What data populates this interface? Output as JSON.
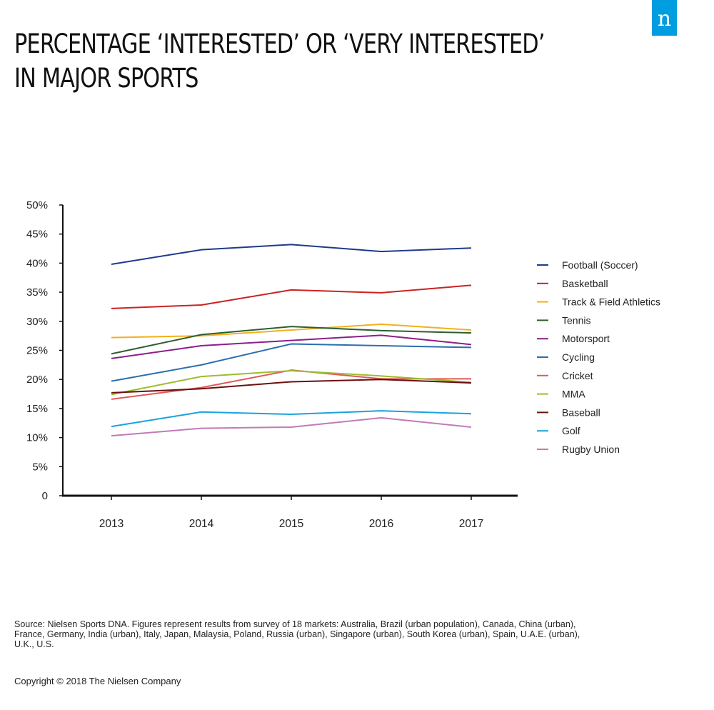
{
  "header": {
    "title_line1": "PERCENTAGE ‘INTERESTED’ OR ‘VERY INTERESTED’",
    "title_line2": "IN MAJOR SPORTS",
    "logo_text": "n"
  },
  "chart_data": {
    "type": "line",
    "title": "PERCENTAGE ‘INTERESTED’ OR ‘VERY INTERESTED’ IN MAJOR SPORTS",
    "xlabel": "",
    "ylabel": "",
    "categories": [
      "2013",
      "2014",
      "2015",
      "2016",
      "2017"
    ],
    "ylim": [
      0,
      50
    ],
    "yticks": [
      0,
      5,
      10,
      15,
      20,
      25,
      30,
      35,
      40,
      45,
      50
    ],
    "ytick_labels": [
      "0",
      "5%",
      "10%",
      "15%",
      "20%",
      "25%",
      "30%",
      "35%",
      "40%",
      "45%",
      "50%"
    ],
    "legend_position": "right",
    "grid": false,
    "series": [
      {
        "name": "Football (Soccer)",
        "color": "#1f3a8a",
        "values": [
          39.8,
          42.3,
          43.2,
          42.0,
          42.6
        ]
      },
      {
        "name": "Basketball",
        "color": "#cc2222",
        "values": [
          32.2,
          32.8,
          35.4,
          34.9,
          36.2
        ]
      },
      {
        "name": "Track & Field Athletics",
        "color": "#f2b01e",
        "values": [
          27.2,
          27.5,
          28.5,
          29.5,
          28.5
        ]
      },
      {
        "name": "Tennis",
        "color": "#2e5e2e",
        "values": [
          24.4,
          27.7,
          29.1,
          28.4,
          28.0
        ]
      },
      {
        "name": "Motorsport",
        "color": "#8b1f8b",
        "values": [
          23.6,
          25.8,
          26.7,
          27.6,
          26.0
        ]
      },
      {
        "name": "Cycling",
        "color": "#2a6fad",
        "values": [
          19.7,
          22.5,
          26.1,
          25.8,
          25.5
        ]
      },
      {
        "name": "Cricket",
        "color": "#e05a5a",
        "values": [
          16.6,
          18.6,
          21.6,
          20.1,
          20.1
        ]
      },
      {
        "name": "MMA",
        "color": "#9bbd2e",
        "values": [
          17.4,
          20.5,
          21.5,
          20.6,
          19.5
        ]
      },
      {
        "name": "Baseball",
        "color": "#6b1010",
        "values": [
          17.7,
          18.4,
          19.6,
          20.0,
          19.4
        ]
      },
      {
        "name": "Golf",
        "color": "#1aa3dc",
        "values": [
          11.9,
          14.4,
          14.0,
          14.6,
          14.1
        ]
      },
      {
        "name": "Rugby Union",
        "color": "#c27ab8",
        "values": [
          10.3,
          11.6,
          11.8,
          13.4,
          11.8
        ]
      }
    ]
  },
  "footer": {
    "source": "Source: Nielsen Sports DNA. Figures represent results from survey of 18 markets: Australia, Brazil (urban population), Canada, China (urban), France, Germany, India (urban), Italy, Japan, Malaysia, Poland, Russia (urban), Singapore (urban), South Korea (urban), Spain, U.A.E. (urban), U.K., U.S.",
    "copyright": "Copyright © 2018 The Nielsen Company"
  }
}
